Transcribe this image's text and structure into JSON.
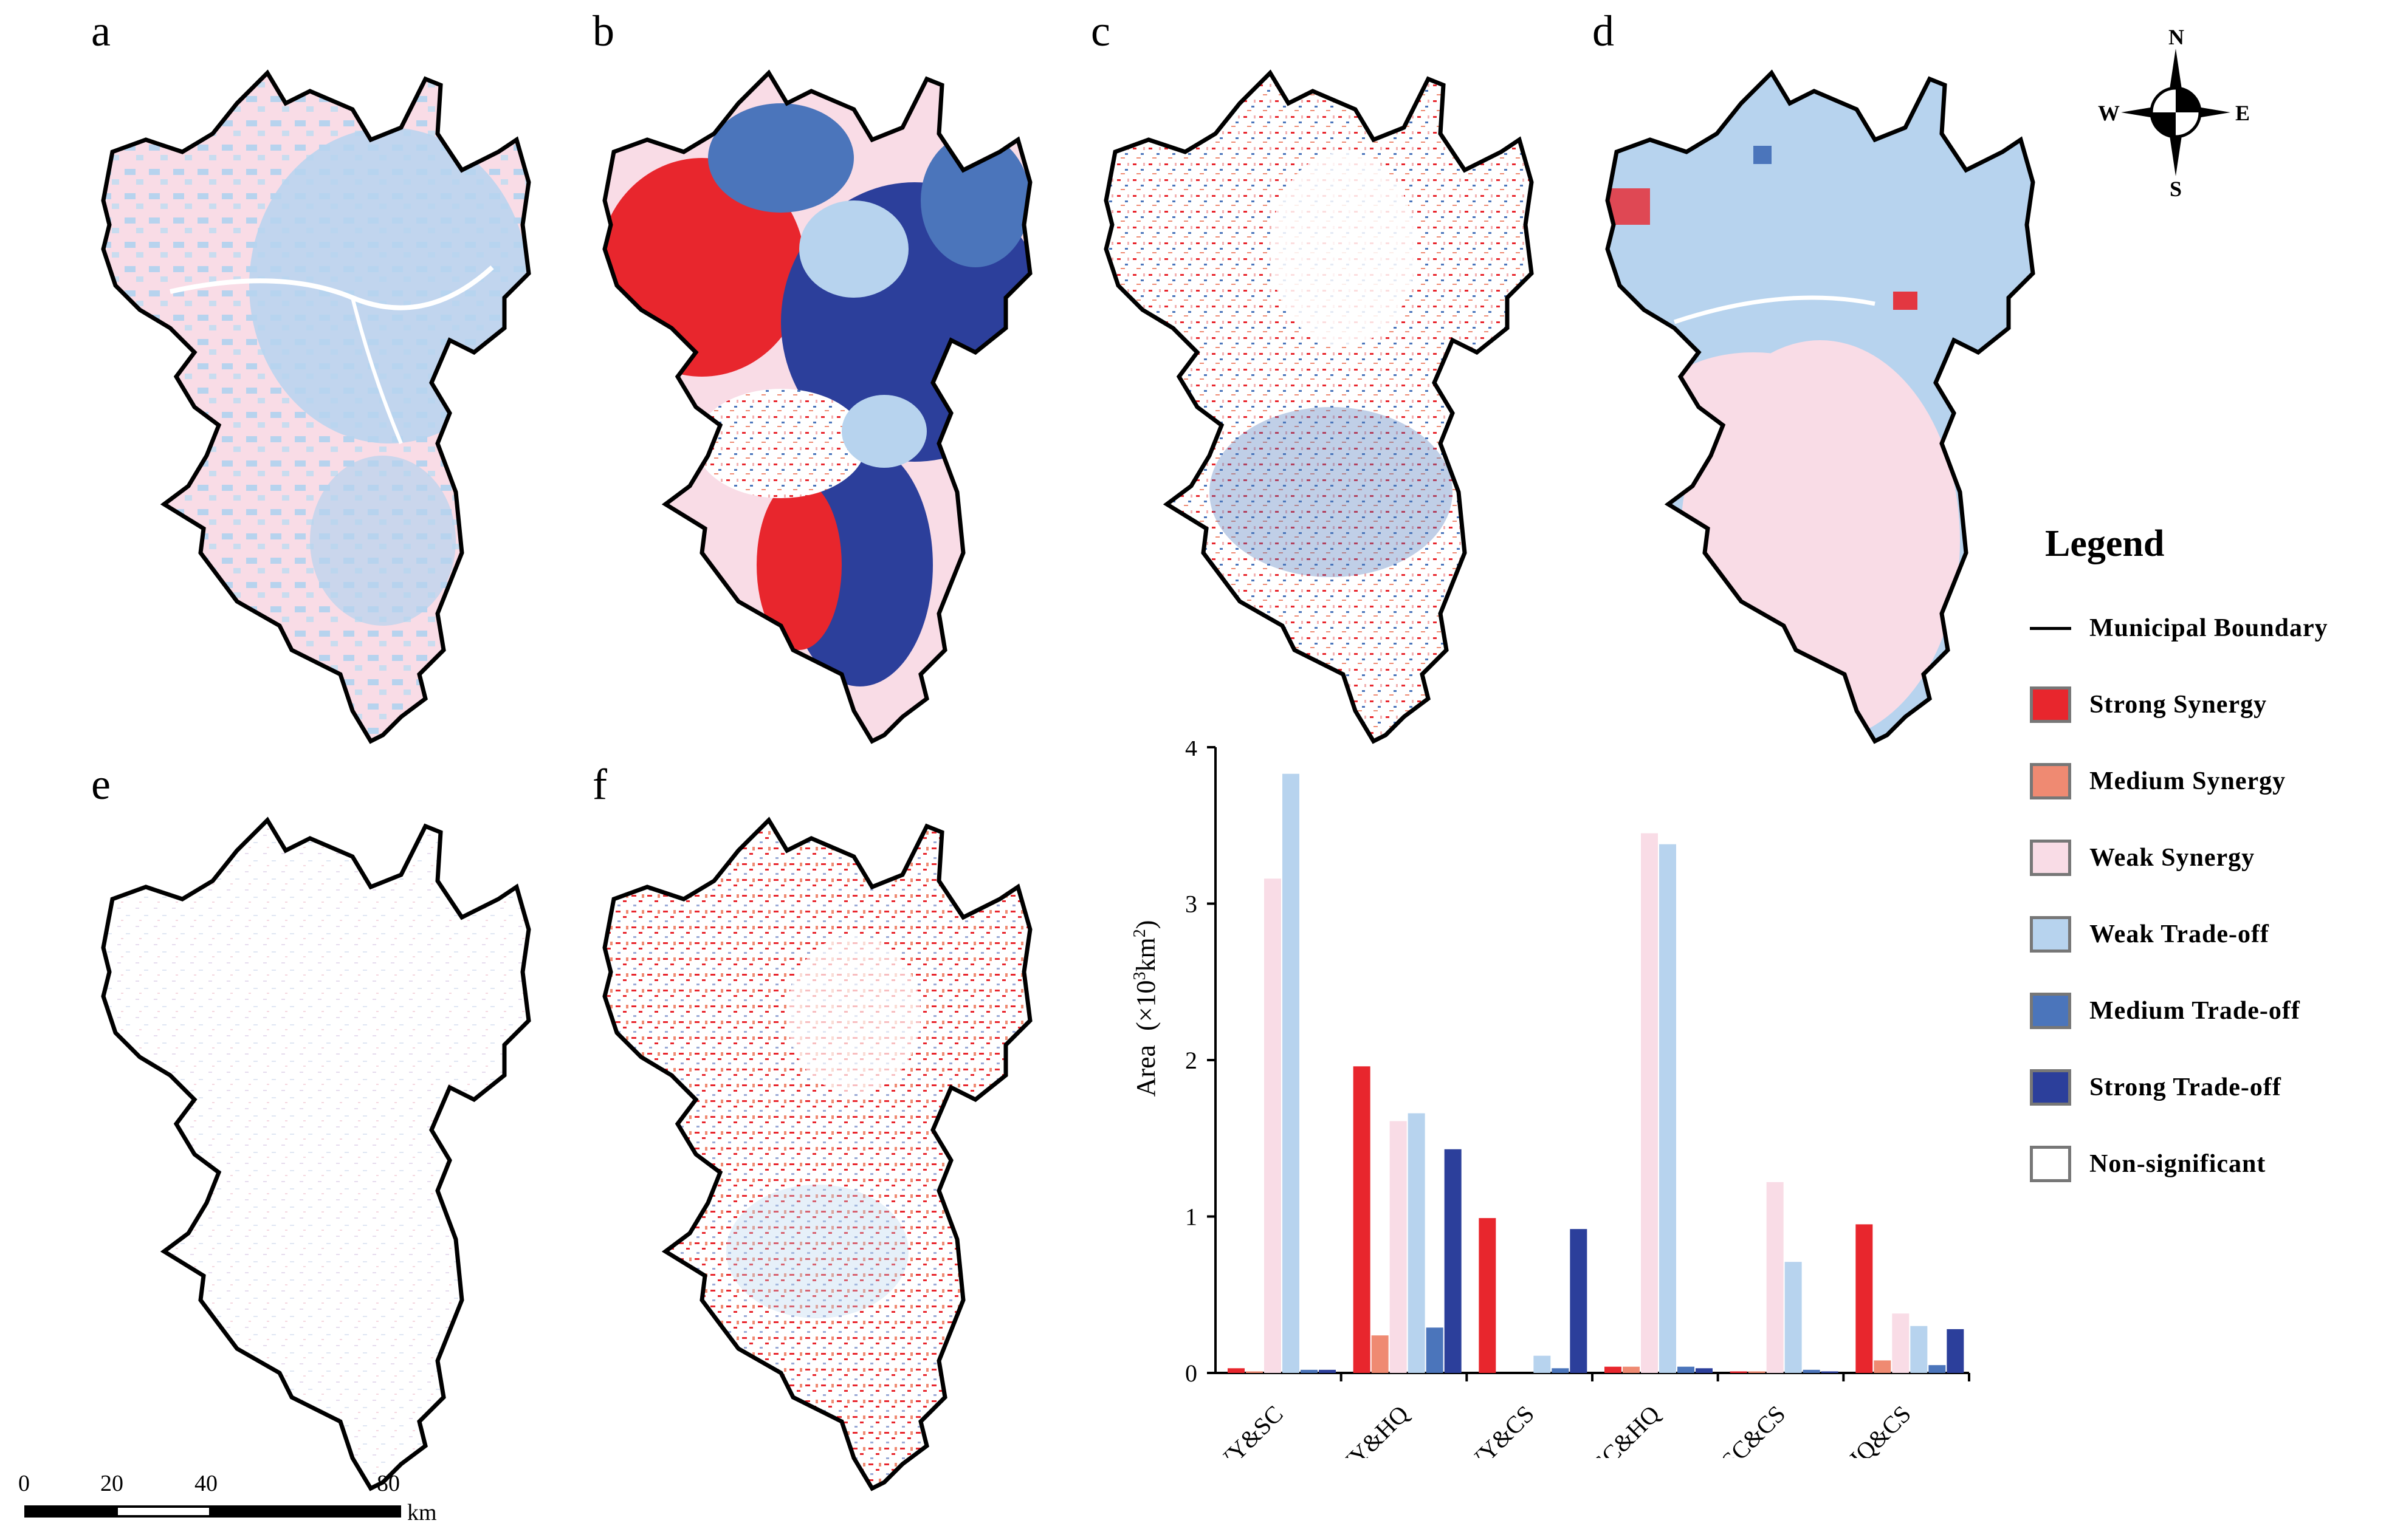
{
  "panels": {
    "a": "a",
    "b": "b",
    "c": "c",
    "d": "d",
    "e": "e",
    "f": "f"
  },
  "compass": {
    "n": "N",
    "s": "S",
    "e": "E",
    "w": "W"
  },
  "legend": {
    "title": "Legend",
    "boundary_label": "Municipal Boundary",
    "items": [
      {
        "label": "Strong Synergy",
        "color": "#e8262d"
      },
      {
        "label": "Medium Synergy",
        "color": "#ef8a72"
      },
      {
        "label": "Weak Synergy",
        "color": "#f9dce6"
      },
      {
        "label": "Weak Trade-off",
        "color": "#b7d3ee"
      },
      {
        "label": "Medium Trade-off",
        "color": "#4b75bb"
      },
      {
        "label": "Strong Trade-off",
        "color": "#2c3f9b"
      },
      {
        "label": "Non-significant",
        "color": "#ffffff"
      }
    ]
  },
  "scalebar": {
    "ticks": [
      "0",
      "20",
      "40",
      "80"
    ],
    "unit": "km"
  },
  "chart_data": {
    "type": "bar",
    "ylabel": "Area (×10³km²)",
    "ylabel_prefix": "Area",
    "ylabel_units": "(×10",
    "ylabel_sup": "3",
    "ylabel_units_tail": "km",
    "ylabel_sup2": "2",
    "ylabel_close": ")",
    "ylim": [
      0,
      4
    ],
    "yticks": [
      "0",
      "1",
      "2",
      "3",
      "4"
    ],
    "categories": [
      "WY&SC",
      "WY&HQ",
      "WY&CS",
      "SC&HQ",
      "SC&CS",
      "HQ&CS"
    ],
    "series": [
      {
        "name": "Strong Synergy",
        "color": "#e8262d",
        "values": [
          0.03,
          1.96,
          0.99,
          0.04,
          0.01,
          0.95
        ]
      },
      {
        "name": "Medium Synergy",
        "color": "#ef8a72",
        "values": [
          0.01,
          0.24,
          0.0,
          0.04,
          0.01,
          0.08
        ]
      },
      {
        "name": "Weak Synergy",
        "color": "#f9dce6",
        "values": [
          3.16,
          1.61,
          0.0,
          3.45,
          1.22,
          0.38
        ]
      },
      {
        "name": "Weak Trade-off",
        "color": "#b7d3ee",
        "values": [
          3.83,
          1.66,
          0.11,
          3.38,
          0.71,
          0.3
        ]
      },
      {
        "name": "Medium Trade-off",
        "color": "#4b75bb",
        "values": [
          0.02,
          0.29,
          0.03,
          0.04,
          0.02,
          0.05
        ]
      },
      {
        "name": "Strong Trade-off",
        "color": "#2c3f9b",
        "values": [
          0.02,
          1.43,
          0.92,
          0.03,
          0.01,
          0.28
        ]
      }
    ]
  }
}
